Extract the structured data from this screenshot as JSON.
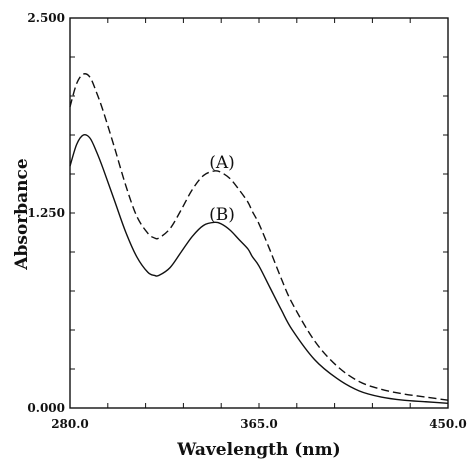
{
  "chart_data": {
    "type": "line",
    "xlabel": "Wavelength (nm)",
    "ylabel": "Absorbance",
    "xlim": [
      280.0,
      450.0
    ],
    "ylim": [
      0.0,
      2.5
    ],
    "x_ticks": [
      "280.0",
      "365.0",
      "450.0"
    ],
    "y_ticks": [
      "0.000",
      "1.250",
      "2.500"
    ],
    "grid": false,
    "series": [
      {
        "name": "(A)",
        "style": "dashed",
        "color": "#111111",
        "x": [
          280,
          283,
          286,
          289,
          292,
          295,
          300,
          305,
          310,
          315,
          318,
          320,
          325,
          330,
          335,
          340,
          345,
          348,
          352,
          356,
          360,
          362,
          365,
          370,
          375,
          380,
          390,
          400,
          410,
          420,
          430,
          440,
          450
        ],
        "y": [
          1.93,
          2.08,
          2.14,
          2.12,
          2.02,
          1.9,
          1.67,
          1.43,
          1.23,
          1.12,
          1.09,
          1.09,
          1.15,
          1.27,
          1.4,
          1.49,
          1.52,
          1.51,
          1.47,
          1.4,
          1.32,
          1.26,
          1.18,
          1.01,
          0.83,
          0.67,
          0.43,
          0.27,
          0.17,
          0.12,
          0.09,
          0.07,
          0.05
        ]
      },
      {
        "name": "(B)",
        "style": "solid",
        "color": "#111111",
        "x": [
          280,
          283,
          286,
          289,
          292,
          295,
          300,
          305,
          310,
          315,
          318,
          320,
          325,
          330,
          335,
          340,
          345,
          348,
          352,
          356,
          360,
          362,
          365,
          370,
          375,
          380,
          390,
          400,
          410,
          420,
          430,
          440,
          450
        ],
        "y": [
          1.55,
          1.69,
          1.75,
          1.73,
          1.64,
          1.53,
          1.33,
          1.13,
          0.97,
          0.87,
          0.85,
          0.85,
          0.9,
          1.0,
          1.1,
          1.17,
          1.19,
          1.18,
          1.14,
          1.08,
          1.02,
          0.97,
          0.91,
          0.77,
          0.63,
          0.5,
          0.31,
          0.19,
          0.11,
          0.07,
          0.05,
          0.04,
          0.03
        ]
      }
    ]
  }
}
